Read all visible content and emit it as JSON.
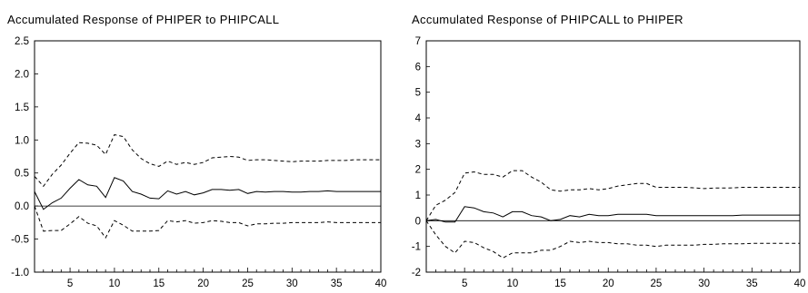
{
  "chart_data": [
    {
      "type": "line",
      "title": "Accumulated Response of PHIPER to PHIPCALL",
      "xlabel": "",
      "ylabel": "",
      "xlim": [
        1,
        40
      ],
      "ylim": [
        -1.0,
        2.5
      ],
      "grid": false,
      "zero_line": true,
      "x_ticks": [
        5,
        10,
        15,
        20,
        25,
        30,
        35,
        40
      ],
      "y_ticks": [
        -1.0,
        -0.5,
        0.0,
        0.5,
        1.0,
        1.5,
        2.0,
        2.5
      ],
      "y_tick_labels": [
        "-1.0",
        "-0.5",
        "0.0",
        "0.5",
        "1.0",
        "1.5",
        "2.0",
        "2.5"
      ],
      "series": [
        {
          "style": "solid",
          "values": [
            0.22,
            -0.05,
            0.05,
            0.12,
            0.27,
            0.4,
            0.32,
            0.3,
            0.13,
            0.43,
            0.38,
            0.22,
            0.18,
            0.12,
            0.11,
            0.23,
            0.18,
            0.22,
            0.17,
            0.2,
            0.25,
            0.25,
            0.24,
            0.25,
            0.19,
            0.22,
            0.21,
            0.22,
            0.22,
            0.21,
            0.21,
            0.22,
            0.22,
            0.23,
            0.22,
            0.22,
            0.22,
            0.22,
            0.22,
            0.22
          ]
        },
        {
          "style": "dashed",
          "values": [
            0.45,
            0.3,
            0.48,
            0.62,
            0.8,
            0.96,
            0.95,
            0.92,
            0.78,
            1.08,
            1.05,
            0.85,
            0.72,
            0.64,
            0.6,
            0.68,
            0.63,
            0.66,
            0.63,
            0.66,
            0.73,
            0.74,
            0.75,
            0.74,
            0.69,
            0.7,
            0.7,
            0.69,
            0.68,
            0.67,
            0.68,
            0.68,
            0.68,
            0.69,
            0.69,
            0.69,
            0.7,
            0.7,
            0.7,
            0.7
          ]
        },
        {
          "style": "dashed",
          "values": [
            0.0,
            -0.38,
            -0.37,
            -0.37,
            -0.27,
            -0.16,
            -0.26,
            -0.3,
            -0.48,
            -0.22,
            -0.29,
            -0.38,
            -0.38,
            -0.38,
            -0.37,
            -0.22,
            -0.24,
            -0.22,
            -0.26,
            -0.25,
            -0.22,
            -0.23,
            -0.25,
            -0.25,
            -0.3,
            -0.27,
            -0.27,
            -0.26,
            -0.26,
            -0.25,
            -0.25,
            -0.25,
            -0.25,
            -0.24,
            -0.25,
            -0.25,
            -0.25,
            -0.25,
            -0.25,
            -0.25
          ]
        }
      ]
    },
    {
      "type": "line",
      "title": "Accumulated Response of PHIPCALL to PHIPER",
      "xlabel": "",
      "ylabel": "",
      "xlim": [
        1,
        40
      ],
      "ylim": [
        -2,
        7
      ],
      "grid": false,
      "zero_line": true,
      "x_ticks": [
        5,
        10,
        15,
        20,
        25,
        30,
        35,
        40
      ],
      "y_ticks": [
        -2,
        -1,
        0,
        1,
        2,
        3,
        4,
        5,
        6,
        7
      ],
      "y_tick_labels": [
        "-2",
        "-1",
        "0",
        "1",
        "2",
        "3",
        "4",
        "5",
        "6",
        "7"
      ],
      "series": [
        {
          "style": "solid",
          "values": [
            0.0,
            0.05,
            -0.05,
            -0.05,
            0.55,
            0.5,
            0.35,
            0.3,
            0.15,
            0.35,
            0.35,
            0.2,
            0.15,
            0.0,
            0.05,
            0.2,
            0.15,
            0.25,
            0.2,
            0.2,
            0.25,
            0.25,
            0.25,
            0.25,
            0.2,
            0.2,
            0.2,
            0.2,
            0.2,
            0.2,
            0.2,
            0.2,
            0.2,
            0.22,
            0.22,
            0.22,
            0.22,
            0.22,
            0.22,
            0.22
          ]
        },
        {
          "style": "dashed",
          "values": [
            0.0,
            0.6,
            0.8,
            1.1,
            1.85,
            1.9,
            1.8,
            1.8,
            1.7,
            1.95,
            1.95,
            1.7,
            1.5,
            1.2,
            1.15,
            1.2,
            1.2,
            1.25,
            1.2,
            1.25,
            1.35,
            1.4,
            1.45,
            1.45,
            1.3,
            1.3,
            1.3,
            1.3,
            1.28,
            1.25,
            1.27,
            1.27,
            1.28,
            1.3,
            1.3,
            1.3,
            1.3,
            1.3,
            1.3,
            1.3
          ]
        },
        {
          "style": "dashed",
          "values": [
            0.0,
            -0.55,
            -1.0,
            -1.25,
            -0.8,
            -0.85,
            -1.05,
            -1.2,
            -1.45,
            -1.25,
            -1.25,
            -1.25,
            -1.15,
            -1.15,
            -1.0,
            -0.8,
            -0.85,
            -0.8,
            -0.85,
            -0.85,
            -0.9,
            -0.9,
            -0.95,
            -0.95,
            -1.0,
            -0.95,
            -0.95,
            -0.95,
            -0.95,
            -0.92,
            -0.92,
            -0.9,
            -0.9,
            -0.9,
            -0.88,
            -0.88,
            -0.88,
            -0.88,
            -0.88,
            -0.88
          ]
        }
      ]
    }
  ]
}
